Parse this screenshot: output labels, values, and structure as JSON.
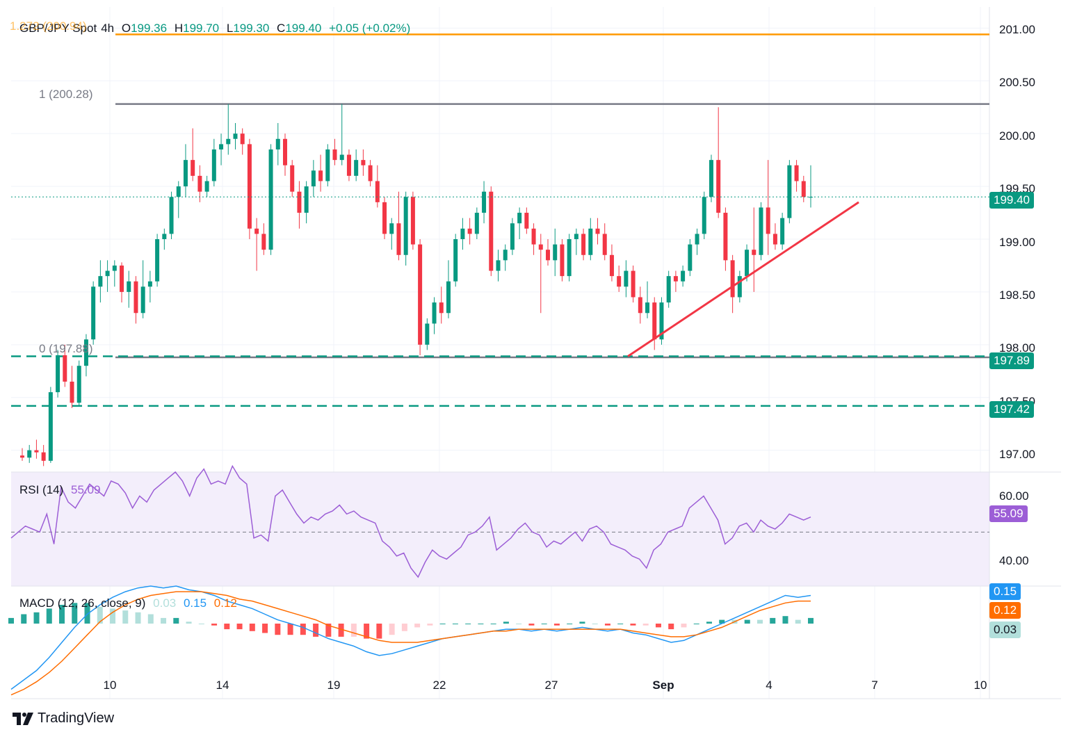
{
  "header": {
    "symbol": "GBP/JPY Spot",
    "timeframe": "4h",
    "open_label": "O",
    "open": "199.36",
    "high_label": "H",
    "high": "199.70",
    "low_label": "L",
    "low": "199.30",
    "close_label": "C",
    "close": "199.40",
    "change": "+0.05 (+0.02%)"
  },
  "fib_levels": {
    "level_1272": "1.272 (200.94)",
    "level_1": "1 (200.28)",
    "level_0": "0 (197.88)"
  },
  "price_tags": {
    "last": "199.40",
    "support1": "197.89",
    "support2": "197.42"
  },
  "rsi": {
    "label": "RSI (14)",
    "value": "55.09",
    "tag": "55.09"
  },
  "macd": {
    "label": "MACD (12, 26, close, 9)",
    "hist": "0.03",
    "macd": "0.15",
    "signal": "0.12",
    "tag_macd": "0.15",
    "tag_signal": "0.12",
    "tag_hist": "0.03"
  },
  "brand": "TradingView",
  "colors": {
    "up": "#089981",
    "down": "#f23645",
    "fib_ext": "#ff9800",
    "fib": "#787b86",
    "trend": "#f23645",
    "rsi": "#9c5ed6",
    "macd": "#2196f3",
    "signal": "#ff6d00"
  },
  "chart_data": {
    "type": "candlestick",
    "ylim": [
      196.8,
      201.2
    ],
    "y_ticks": [
      "201.00",
      "200.50",
      "200.00",
      "199.50",
      "199.00",
      "198.50",
      "198.00",
      "197.50",
      "197.00"
    ],
    "x_ticks": [
      "10",
      "14",
      "19",
      "22",
      "27",
      "Sep",
      "4",
      "7",
      "10"
    ],
    "horizontal_lines": [
      {
        "label": "1.272 (200.94)",
        "value": 200.94
      },
      {
        "label": "1 (200.28)",
        "value": 200.28
      },
      {
        "label": "0 (197.88)",
        "value": 197.88
      },
      {
        "label": "197.89",
        "value": 197.89
      },
      {
        "label": "197.42",
        "value": 197.42
      }
    ],
    "trendline": {
      "from": [
        197.89,
        "Aug 30"
      ],
      "to": [
        199.35,
        "Sep 6"
      ]
    },
    "ohlc": [
      [
        196.95,
        197.02,
        196.9,
        196.93
      ],
      [
        196.93,
        197.05,
        196.88,
        197.0
      ],
      [
        197.0,
        197.1,
        196.92,
        196.98
      ],
      [
        196.98,
        197.05,
        196.85,
        196.9
      ],
      [
        196.9,
        197.6,
        196.88,
        197.55
      ],
      [
        197.55,
        197.95,
        197.5,
        197.9
      ],
      [
        197.9,
        198.0,
        197.6,
        197.65
      ],
      [
        197.65,
        197.8,
        197.4,
        197.45
      ],
      [
        197.45,
        197.85,
        197.42,
        197.8
      ],
      [
        197.8,
        198.1,
        197.7,
        198.05
      ],
      [
        198.05,
        198.6,
        198.0,
        198.55
      ],
      [
        198.55,
        198.8,
        198.4,
        198.65
      ],
      [
        198.65,
        198.8,
        198.5,
        198.7
      ],
      [
        198.7,
        198.8,
        198.55,
        198.75
      ],
      [
        198.75,
        198.78,
        198.4,
        198.5
      ],
      [
        198.5,
        198.7,
        198.35,
        198.6
      ],
      [
        198.6,
        198.65,
        198.2,
        198.3
      ],
      [
        198.3,
        198.8,
        198.25,
        198.55
      ],
      [
        198.55,
        198.7,
        198.4,
        198.6
      ],
      [
        198.6,
        199.05,
        198.55,
        199.0
      ],
      [
        199.0,
        199.1,
        198.9,
        199.05
      ],
      [
        199.05,
        199.45,
        199.0,
        199.4
      ],
      [
        199.4,
        199.55,
        199.2,
        199.5
      ],
      [
        199.5,
        199.9,
        199.4,
        199.75
      ],
      [
        199.75,
        200.05,
        199.55,
        199.6
      ],
      [
        199.6,
        199.7,
        199.35,
        199.45
      ],
      [
        199.45,
        199.6,
        199.4,
        199.55
      ],
      [
        199.55,
        199.95,
        199.5,
        199.85
      ],
      [
        199.85,
        200.0,
        199.7,
        199.9
      ],
      [
        199.9,
        200.28,
        199.8,
        199.95
      ],
      [
        199.95,
        200.1,
        199.85,
        200.0
      ],
      [
        200.0,
        200.05,
        199.8,
        199.9
      ],
      [
        199.9,
        199.95,
        199.0,
        199.1
      ],
      [
        199.1,
        199.2,
        198.7,
        199.05
      ],
      [
        199.05,
        199.15,
        198.85,
        198.9
      ],
      [
        198.9,
        199.9,
        198.85,
        199.85
      ],
      [
        199.85,
        200.1,
        199.7,
        199.95
      ],
      [
        199.95,
        200.0,
        199.6,
        199.7
      ],
      [
        199.7,
        199.75,
        199.4,
        199.45
      ],
      [
        199.45,
        199.55,
        199.1,
        199.25
      ],
      [
        199.25,
        199.55,
        199.15,
        199.5
      ],
      [
        199.5,
        199.75,
        199.4,
        199.65
      ],
      [
        199.65,
        199.8,
        199.45,
        199.55
      ],
      [
        199.55,
        199.9,
        199.5,
        199.85
      ],
      [
        199.85,
        199.95,
        199.7,
        199.75
      ],
      [
        199.75,
        200.28,
        199.7,
        199.8
      ],
      [
        199.8,
        199.85,
        199.55,
        199.6
      ],
      [
        199.6,
        199.85,
        199.55,
        199.75
      ],
      [
        199.75,
        199.85,
        199.6,
        199.7
      ],
      [
        199.7,
        199.75,
        199.5,
        199.55
      ],
      [
        199.55,
        199.7,
        199.3,
        199.35
      ],
      [
        199.35,
        199.4,
        199.0,
        199.05
      ],
      [
        199.05,
        199.2,
        198.9,
        199.15
      ],
      [
        199.15,
        199.45,
        198.8,
        198.85
      ],
      [
        198.85,
        199.45,
        198.75,
        199.4
      ],
      [
        199.4,
        199.45,
        198.9,
        198.95
      ],
      [
        198.95,
        199.0,
        197.9,
        198.0
      ],
      [
        198.0,
        198.25,
        197.95,
        198.2
      ],
      [
        198.2,
        198.45,
        198.1,
        198.4
      ],
      [
        198.4,
        198.55,
        198.2,
        198.3
      ],
      [
        198.3,
        198.8,
        198.25,
        198.6
      ],
      [
        198.6,
        199.05,
        198.55,
        199.0
      ],
      [
        199.0,
        199.2,
        198.9,
        199.1
      ],
      [
        199.1,
        199.2,
        198.95,
        199.05
      ],
      [
        199.05,
        199.3,
        199.0,
        199.25
      ],
      [
        199.25,
        199.55,
        199.15,
        199.45
      ],
      [
        199.45,
        199.5,
        198.65,
        198.7
      ],
      [
        198.7,
        198.9,
        198.6,
        198.8
      ],
      [
        198.8,
        198.95,
        198.7,
        198.9
      ],
      [
        198.9,
        199.2,
        198.85,
        199.15
      ],
      [
        199.15,
        199.3,
        199.0,
        199.25
      ],
      [
        199.25,
        199.3,
        199.05,
        199.1
      ],
      [
        199.1,
        199.15,
        198.85,
        198.95
      ],
      [
        198.95,
        199.05,
        198.3,
        198.9
      ],
      [
        198.9,
        199.0,
        198.75,
        198.8
      ],
      [
        198.8,
        199.1,
        198.65,
        198.95
      ],
      [
        198.95,
        199.0,
        198.6,
        198.65
      ],
      [
        198.65,
        199.05,
        198.6,
        199.0
      ],
      [
        199.0,
        199.1,
        198.85,
        199.05
      ],
      [
        199.05,
        199.1,
        198.8,
        198.85
      ],
      [
        198.85,
        199.2,
        198.8,
        199.1
      ],
      [
        199.1,
        199.2,
        198.95,
        199.05
      ],
      [
        199.05,
        199.15,
        198.8,
        198.85
      ],
      [
        198.85,
        198.95,
        198.6,
        198.65
      ],
      [
        198.65,
        198.75,
        198.5,
        198.55
      ],
      [
        198.55,
        198.8,
        198.45,
        198.7
      ],
      [
        198.7,
        198.75,
        198.4,
        198.45
      ],
      [
        198.45,
        198.55,
        198.2,
        198.3
      ],
      [
        198.3,
        198.6,
        198.25,
        198.4
      ],
      [
        198.4,
        198.45,
        197.95,
        198.05
      ],
      [
        198.05,
        198.45,
        198.0,
        198.4
      ],
      [
        198.4,
        198.7,
        198.35,
        198.65
      ],
      [
        198.65,
        198.7,
        198.5,
        198.6
      ],
      [
        198.6,
        198.75,
        198.55,
        198.7
      ],
      [
        198.7,
        199.0,
        198.65,
        198.95
      ],
      [
        198.95,
        199.1,
        198.85,
        199.05
      ],
      [
        199.05,
        199.45,
        199.0,
        199.4
      ],
      [
        199.4,
        199.8,
        199.35,
        199.75
      ],
      [
        199.75,
        200.25,
        199.2,
        199.25
      ],
      [
        199.25,
        199.3,
        198.7,
        198.8
      ],
      [
        198.8,
        198.85,
        198.3,
        198.45
      ],
      [
        198.45,
        198.7,
        198.4,
        198.65
      ],
      [
        198.65,
        198.95,
        198.6,
        198.9
      ],
      [
        198.9,
        199.3,
        198.5,
        198.85
      ],
      [
        198.85,
        199.35,
        198.8,
        199.3
      ],
      [
        199.3,
        199.75,
        198.85,
        199.05
      ],
      [
        199.05,
        199.15,
        198.9,
        198.95
      ],
      [
        198.95,
        199.25,
        198.9,
        199.2
      ],
      [
        199.2,
        199.75,
        199.15,
        199.7
      ],
      [
        199.7,
        199.75,
        199.45,
        199.55
      ],
      [
        199.55,
        199.6,
        199.35,
        199.4
      ],
      [
        199.4,
        199.7,
        199.3,
        199.4
      ]
    ],
    "rsi": {
      "ylim": [
        32,
        70
      ],
      "y_ticks": [
        "60.00",
        "40.00"
      ],
      "midline": 50,
      "values": [
        48,
        50,
        52,
        51,
        50,
        56,
        46,
        65,
        60,
        58,
        62,
        66,
        64,
        62,
        67,
        66,
        63,
        58,
        62,
        60,
        64,
        66,
        68,
        70,
        67,
        62,
        68,
        71,
        66,
        67,
        66,
        72,
        68,
        66,
        48,
        49,
        47,
        62,
        64,
        60,
        56,
        53,
        55,
        54,
        56,
        57,
        59,
        56,
        57,
        55,
        54,
        53,
        47,
        45,
        42,
        43,
        38,
        35,
        40,
        44,
        42,
        41,
        43,
        45,
        49,
        50,
        52,
        55,
        44,
        46,
        48,
        51,
        53,
        50,
        49,
        45,
        47,
        46,
        48,
        50,
        47,
        51,
        52,
        50,
        46,
        45,
        44,
        42,
        41,
        38,
        44,
        46,
        50,
        51,
        52,
        58,
        60,
        62,
        58,
        54,
        46,
        48,
        52,
        53,
        50,
        54,
        52,
        51,
        53,
        56,
        55,
        54,
        55
      ]
    },
    "macd": {
      "ylim": [
        -0.4,
        0.2
      ],
      "zero": 0,
      "macd": [
        -0.35,
        -0.3,
        -0.25,
        -0.18,
        -0.1,
        -0.02,
        0.05,
        0.1,
        0.14,
        0.17,
        0.19,
        0.2,
        0.19,
        0.2,
        0.18,
        0.17,
        0.15,
        0.12,
        0.1,
        0.08,
        0.05,
        0.02,
        0.0,
        -0.02,
        -0.05,
        -0.08,
        -0.1,
        -0.12,
        -0.15,
        -0.17,
        -0.16,
        -0.14,
        -0.12,
        -0.1,
        -0.08,
        -0.07,
        -0.06,
        -0.05,
        -0.04,
        -0.03,
        -0.03,
        -0.04,
        -0.03,
        -0.04,
        -0.03,
        -0.02,
        -0.03,
        -0.04,
        -0.03,
        -0.05,
        -0.06,
        -0.08,
        -0.1,
        -0.09,
        -0.06,
        -0.03,
        0.0,
        0.03,
        0.06,
        0.09,
        0.12,
        0.15,
        0.14,
        0.15
      ],
      "signal": [
        -0.38,
        -0.35,
        -0.31,
        -0.26,
        -0.2,
        -0.13,
        -0.06,
        0.01,
        0.06,
        0.1,
        0.13,
        0.15,
        0.16,
        0.17,
        0.17,
        0.17,
        0.16,
        0.15,
        0.13,
        0.12,
        0.1,
        0.08,
        0.06,
        0.04,
        0.02,
        -0.01,
        -0.03,
        -0.05,
        -0.07,
        -0.09,
        -0.1,
        -0.1,
        -0.1,
        -0.09,
        -0.08,
        -0.07,
        -0.06,
        -0.05,
        -0.04,
        -0.04,
        -0.03,
        -0.03,
        -0.03,
        -0.03,
        -0.03,
        -0.03,
        -0.03,
        -0.03,
        -0.03,
        -0.04,
        -0.05,
        -0.06,
        -0.07,
        -0.07,
        -0.06,
        -0.04,
        -0.02,
        0.01,
        0.04,
        0.07,
        0.09,
        0.11,
        0.12,
        0.12
      ]
    }
  }
}
